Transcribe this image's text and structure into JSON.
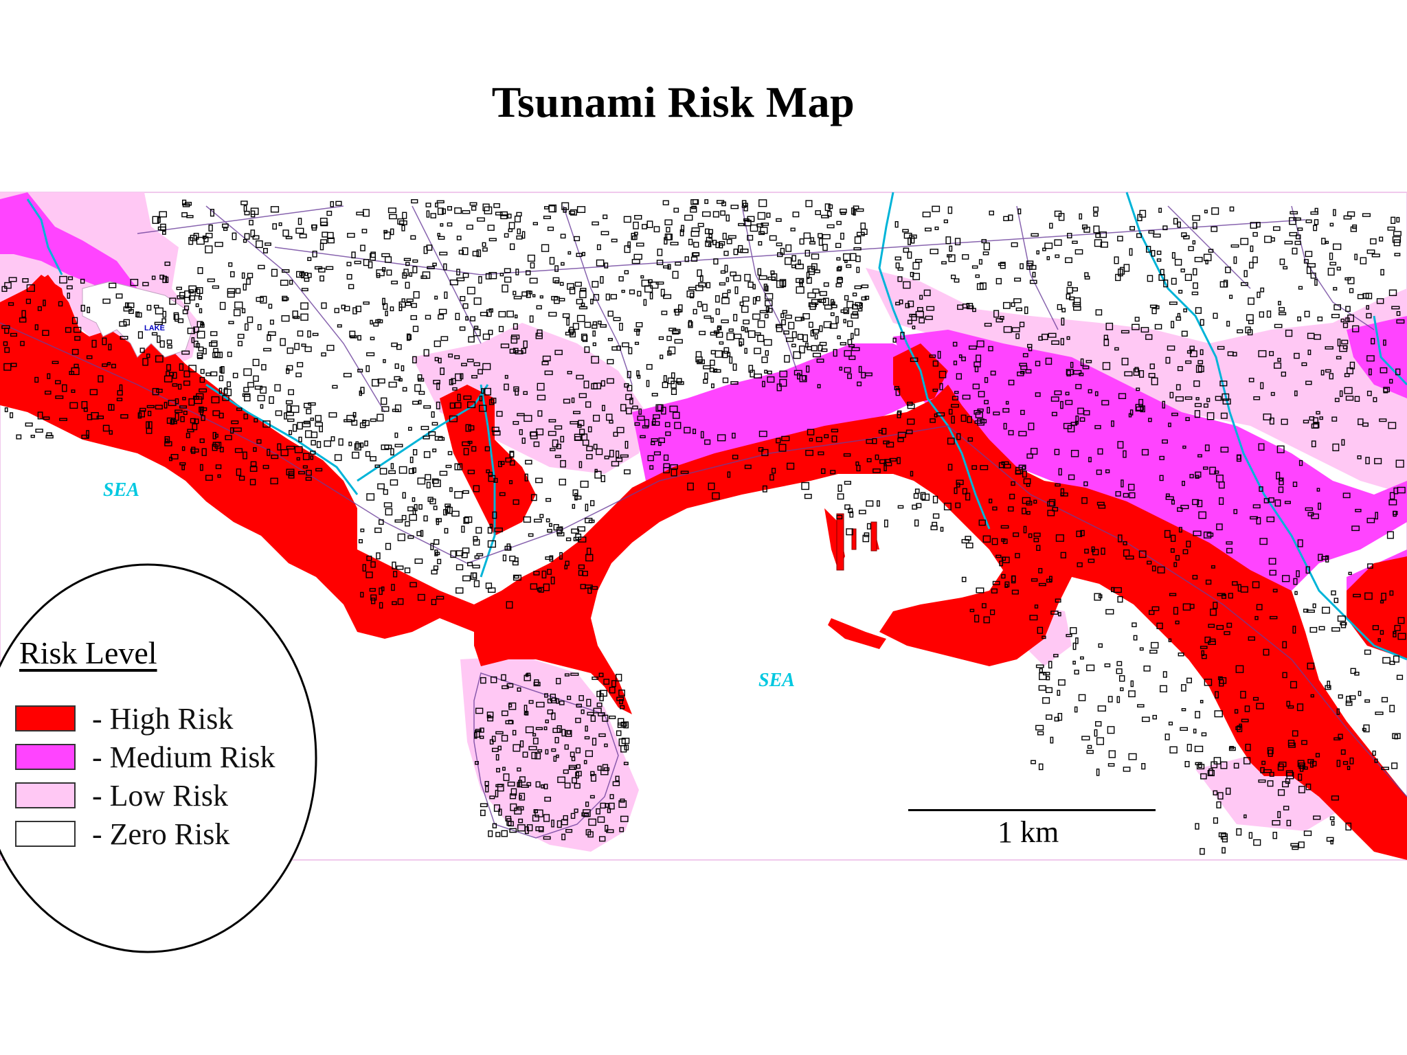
{
  "title": "Tsunami Risk Map",
  "legend": {
    "title": "Risk Level",
    "items": [
      {
        "label": "- High Risk",
        "color": "#ff0000"
      },
      {
        "label": "- Medium Risk",
        "color": "#ff44ff"
      },
      {
        "label": "- Low Risk",
        "color": "#ffc8f4"
      },
      {
        "label": "- Zero Risk",
        "color": "#ffffff"
      }
    ]
  },
  "labels": {
    "sea_left": "SEA",
    "sea_center": "SEA",
    "lake": "LAKE"
  },
  "scale": {
    "label": "1 km"
  },
  "colors": {
    "high": "#ff0000",
    "medium": "#ff44ff",
    "low": "#ffc8f4",
    "zero": "#ffffff",
    "buildings": "#000000",
    "rivers": "#00b4d8",
    "roads": "#6a3d9a"
  }
}
